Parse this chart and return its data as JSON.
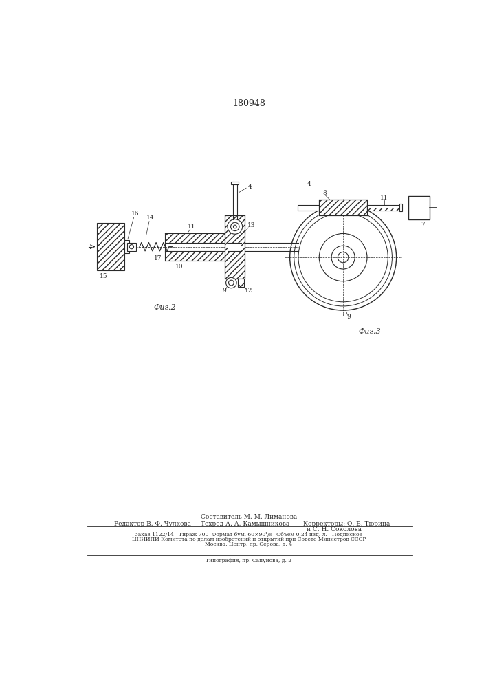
{
  "title": "180948",
  "bg_color": "#ffffff",
  "line_color": "#2a2a2a",
  "fig2_label": "Фиг.2",
  "fig3_label": "Фиг.3",
  "footer_line0_center": "Составитель М. М. Лиманова",
  "footer_line1_left": "Редактор В. Ф. Чулкова",
  "footer_line1_center": "Техред А. А. Камышникова",
  "footer_line1_right": "Корректоры: О. Б. Тюрина",
  "footer_line2_right": "и С. Н. Соколова",
  "footer_line3": "Заказ 1122/14   Тираж 700  Формат бум. 60×90¹/₈   Объем 0,24 изд. л.   Подписное",
  "footer_line4": "ЦНИИПИ Комитета по делам изобретений и открытий при Совете Министров СССР",
  "footer_line5": "Москва, Центр, пр. Серова, д. 4",
  "footer_line6": "Типография, пр. Сапунова, д. 2"
}
